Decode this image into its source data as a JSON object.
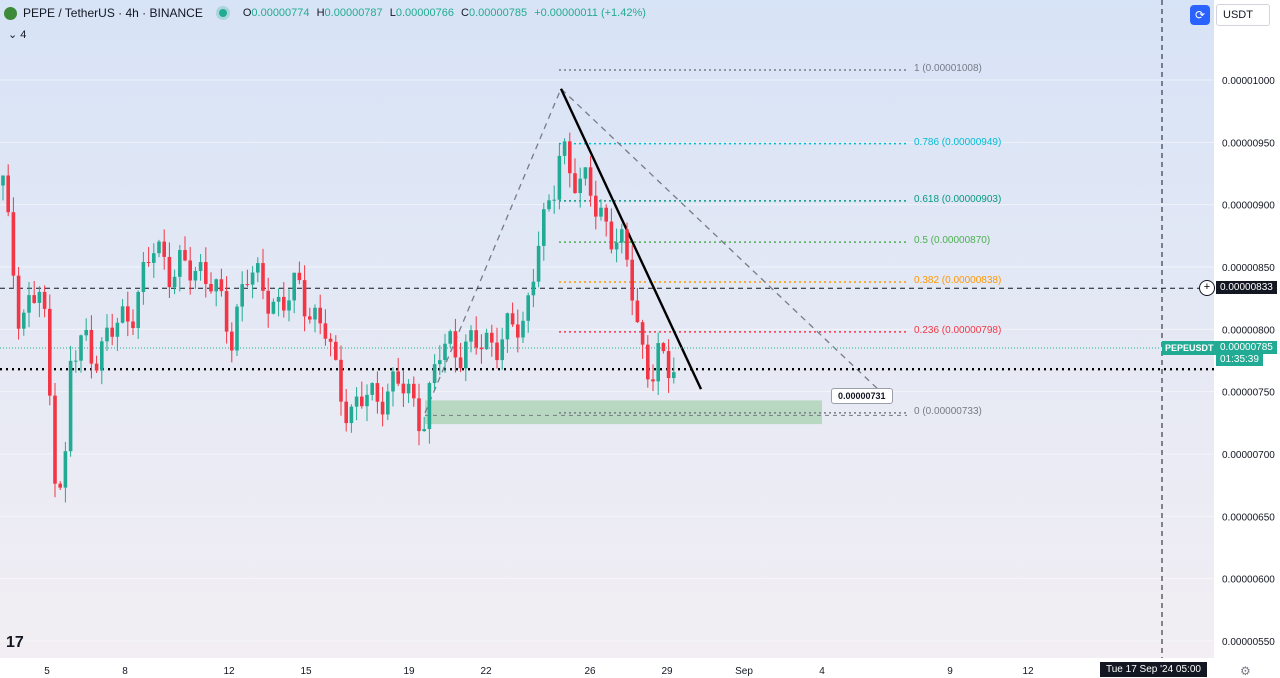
{
  "header": {
    "symbol": "PEPE / TetherUS · 4h · BINANCE",
    "open_label": "O",
    "open": "0.00000774",
    "high_label": "H",
    "high": "0.00000787",
    "low_label": "L",
    "low": "0.00000766",
    "close_label": "C",
    "close": "0.00000785",
    "change": "+0.00000011 (+1.42%)",
    "sub_count": "4"
  },
  "toolbar": {
    "currency": "USDT"
  },
  "colors": {
    "up": "#22ab94",
    "down": "#f23645",
    "bg_top": "#dbe6f7",
    "bg_bottom": "#f3eef3"
  },
  "chart_data": {
    "type": "candlestick",
    "title": "PEPE / TetherUS · 4h · BINANCE",
    "y_ticks": [
      "0.00001000",
      "0.00000950",
      "0.00000900",
      "0.00000850",
      "0.00000800",
      "0.00000750",
      "0.00000700",
      "0.00000650",
      "0.00000600",
      "0.00000550"
    ],
    "y_range": [
      5.38e-06,
      1.057e-05
    ],
    "x_ticks": [
      "5",
      "8",
      "12",
      "15",
      "19",
      "22",
      "26",
      "29",
      "Sep",
      "4",
      "9",
      "12"
    ],
    "fib_levels": [
      {
        "label": "1 (0.00001008)",
        "value": 1.008e-05,
        "color": "#787b86"
      },
      {
        "label": "0.786 (0.00000949)",
        "value": 9.49e-06,
        "color": "#00bcd4"
      },
      {
        "label": "0.618 (0.00000903)",
        "value": 9.03e-06,
        "color": "#089981"
      },
      {
        "label": "0.5 (0.00000870)",
        "value": 8.7e-06,
        "color": "#4caf50"
      },
      {
        "label": "0.382 (0.00000838)",
        "value": 8.38e-06,
        "color": "#ff9800"
      },
      {
        "label": "0.236 (0.00000798)",
        "value": 7.98e-06,
        "color": "#f23645"
      },
      {
        "label": "0 (0.00000733)",
        "value": 7.33e-06,
        "color": "#787b86"
      }
    ],
    "current_price": "0.00000785",
    "pair_tag": "PEPEUSDT",
    "countdown": "01:35:39",
    "crosshair_price": "0.00000833",
    "support_zone": [
      7.24e-06,
      7.43e-06
    ],
    "horizontal_line": 7.68e-06,
    "callout": "0.00000731",
    "crosshair_date": "Tue 17 Sep '24   05:00"
  }
}
